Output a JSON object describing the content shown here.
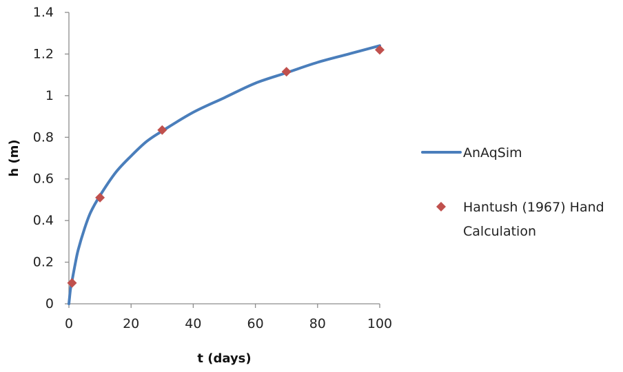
{
  "chart_data": {
    "type": "line",
    "xlabel": "t (days)",
    "ylabel": "h (m)",
    "xlim": [
      0,
      100
    ],
    "ylim": [
      0,
      1.4
    ],
    "xticks": [
      "0",
      "20",
      "40",
      "60",
      "80",
      "100"
    ],
    "yticks": [
      "0",
      "0.2",
      "0.4",
      "0.6",
      "0.8",
      "1",
      "1.2",
      "1.4"
    ],
    "grid": false,
    "legend_position": "right",
    "series": [
      {
        "name": "AnAqSim",
        "kind": "line",
        "color": "#4a7ebb",
        "x": [
          0,
          0.5,
          1,
          2,
          3,
          5,
          7,
          10,
          15,
          20,
          25,
          30,
          40,
          50,
          60,
          70,
          80,
          90,
          100
        ],
        "y": [
          0,
          0.07,
          0.11,
          0.19,
          0.26,
          0.36,
          0.44,
          0.52,
          0.63,
          0.71,
          0.78,
          0.83,
          0.92,
          0.99,
          1.06,
          1.11,
          1.16,
          1.2,
          1.24
        ]
      },
      {
        "name": "Hantush (1967) Hand Calculation",
        "legend_lines": [
          "Hantush (1967) Hand",
          "Calculation"
        ],
        "kind": "marker",
        "marker": "diamond",
        "color": "#c0504d",
        "x": [
          1,
          10,
          30,
          70,
          100
        ],
        "y": [
          0.1,
          0.51,
          0.835,
          1.115,
          1.22
        ]
      }
    ]
  }
}
